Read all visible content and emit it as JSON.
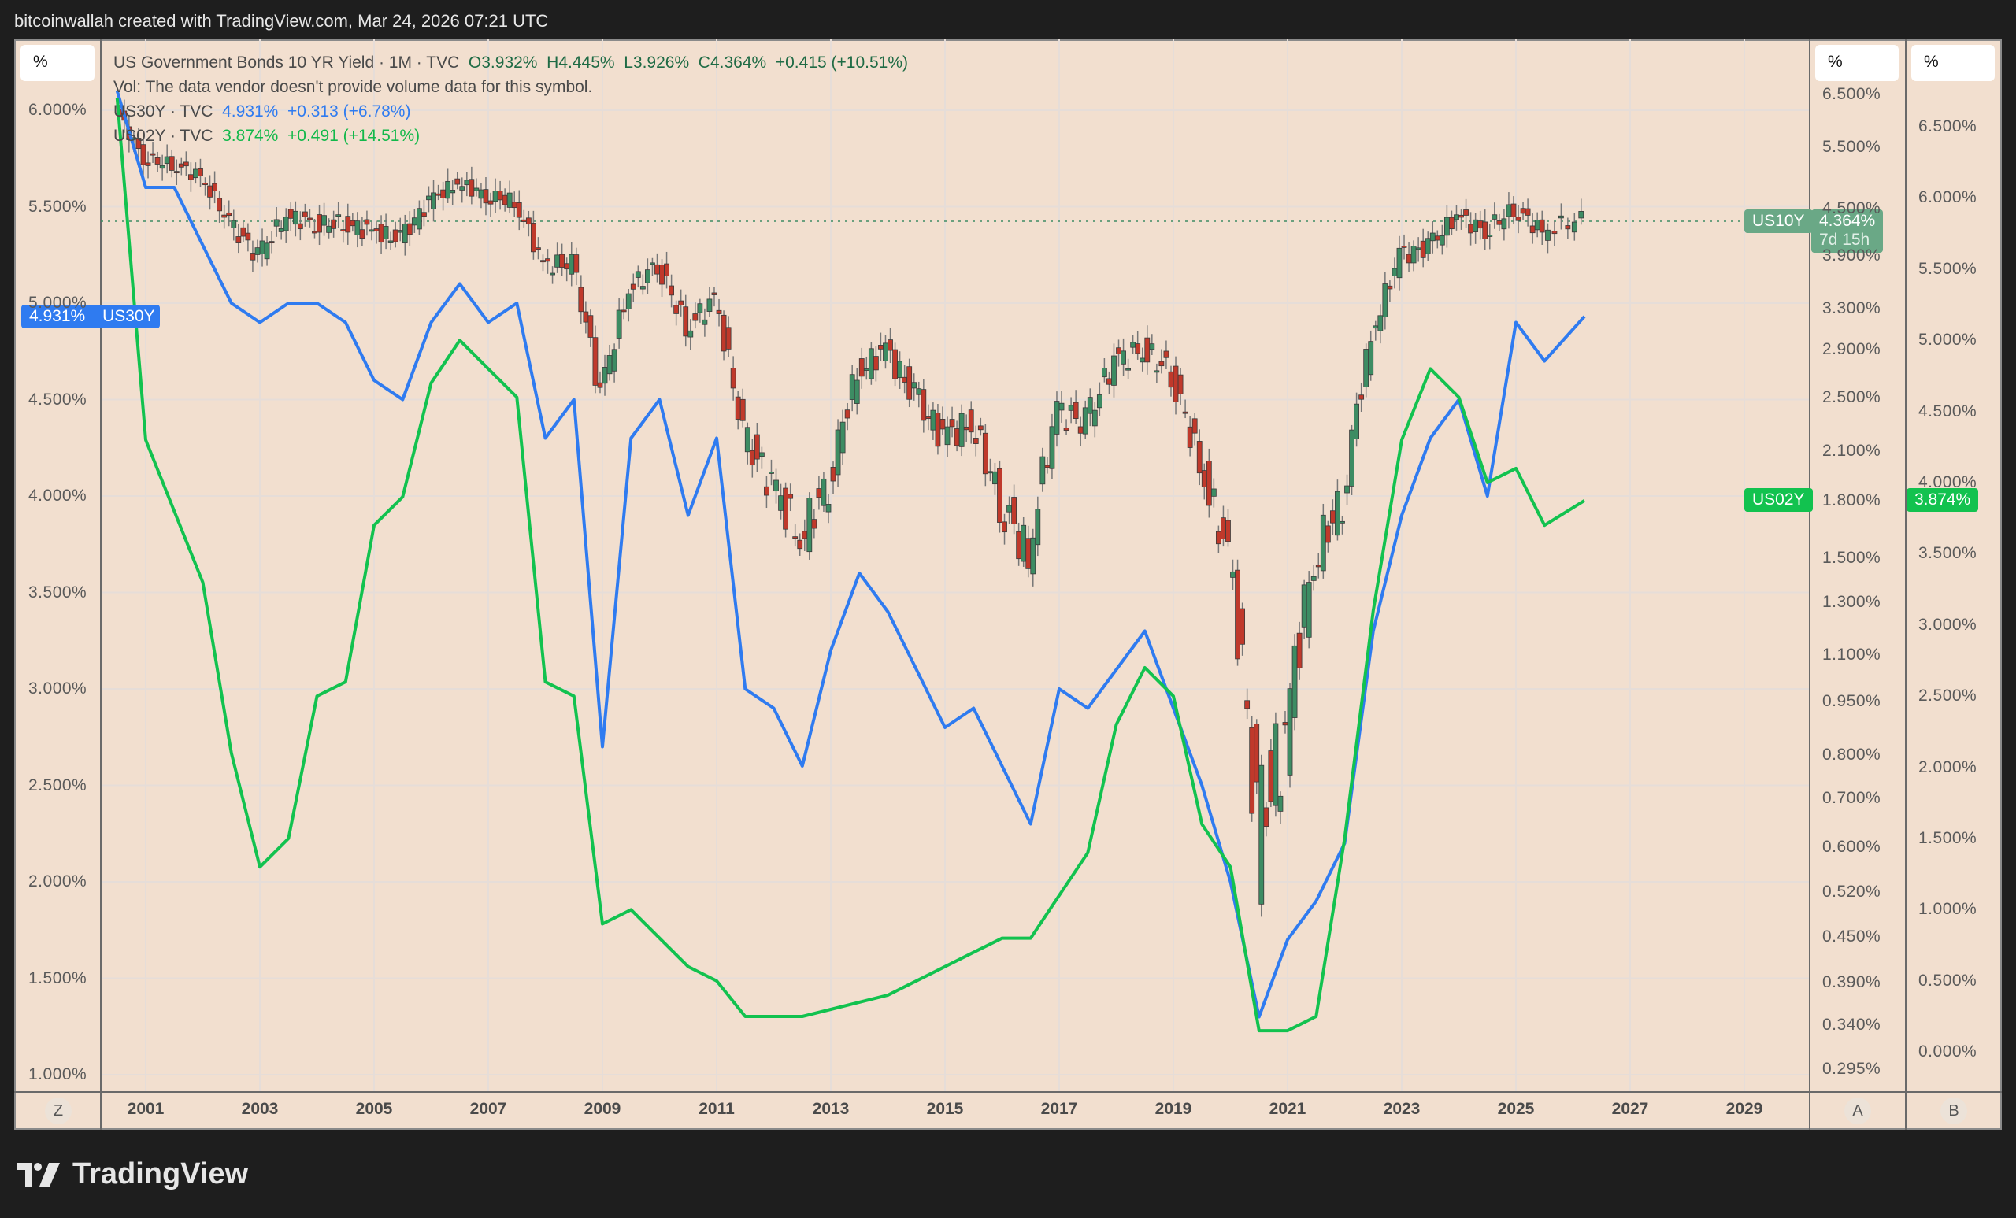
{
  "header": {
    "attribution": "bitcoinwallah created with TradingView.com, Mar 24, 2026 07:21 UTC"
  },
  "legend": {
    "main_title": "US Government Bonds 10 YR Yield · 1M · TVC",
    "ohlc": {
      "open": "O3.932%",
      "high": "H4.445%",
      "low": "L3.926%",
      "close": "C4.364%",
      "change": "+0.415 (+10.51%)"
    },
    "vol_note": "Vol: The data vendor doesn't provide volume data for this symbol.",
    "us30y": {
      "label": "US30Y · TVC",
      "value": "4.931%",
      "change": "+0.313 (+6.78%)"
    },
    "us02y": {
      "label": "US02Y · TVC",
      "value": "3.874%",
      "change": "+0.491 (+14.51%)"
    }
  },
  "axes": {
    "unit_button": "%",
    "left_ticks": [
      "6.000%",
      "5.500%",
      "5.000%",
      "4.500%",
      "4.000%",
      "3.500%",
      "3.000%",
      "2.500%",
      "2.000%",
      "1.500%",
      "1.000%"
    ],
    "a_ticks": [
      "6.500%",
      "5.500%",
      "4.500%",
      "3.900%",
      "3.300%",
      "2.900%",
      "2.500%",
      "2.100%",
      "1.800%",
      "1.500%",
      "1.300%",
      "1.100%",
      "0.950%",
      "0.800%",
      "0.700%",
      "0.600%",
      "0.520%",
      "0.450%",
      "0.390%",
      "0.340%",
      "0.295%"
    ],
    "b_ticks": [
      "6.500%",
      "6.000%",
      "5.500%",
      "5.000%",
      "4.500%",
      "4.000%",
      "3.500%",
      "3.000%",
      "2.500%",
      "2.000%",
      "1.500%",
      "1.000%",
      "0.500%",
      "0.000%"
    ],
    "x_ticks": [
      "2001",
      "2003",
      "2005",
      "2007",
      "2009",
      "2011",
      "2013",
      "2015",
      "2017",
      "2019",
      "2021",
      "2023",
      "2025",
      "2027",
      "2029"
    ],
    "z_button": "Z",
    "a_button": "A",
    "b_button": "B"
  },
  "tags": {
    "us30y_value": "4.931%",
    "us30y_name": "US30Y",
    "us10y_name": "US10Y",
    "us10y_value": "4.364%",
    "us10y_countdown": "7d 15h",
    "us02y_name": "US02Y",
    "us02y_value": "3.874%"
  },
  "colors": {
    "us10y_up": "#3d8c63",
    "us10y_down": "#c0392b",
    "us30y": "#2f7bf0",
    "us02y": "#12c24f",
    "background": "#f2dfcf"
  },
  "footer": {
    "brand": "TradingView"
  },
  "chart_data": {
    "type": "line",
    "title": "US Government Bonds 10 YR Yield · 1M · TVC (with US30Y and US02Y overlays)",
    "xlabel": "",
    "ylabel": "%",
    "x": [
      2000.5,
      2001,
      2001.5,
      2002,
      2002.5,
      2003,
      2003.5,
      2004,
      2004.5,
      2005,
      2005.5,
      2006,
      2006.5,
      2007,
      2007.5,
      2008,
      2008.5,
      2009,
      2009.5,
      2010,
      2010.5,
      2011,
      2011.5,
      2012,
      2012.5,
      2013,
      2013.5,
      2014,
      2014.5,
      2015,
      2015.5,
      2016,
      2016.5,
      2017,
      2017.5,
      2018,
      2018.5,
      2019,
      2019.5,
      2020,
      2020.5,
      2021,
      2021.5,
      2022,
      2022.5,
      2023,
      2023.5,
      2024,
      2024.5,
      2025,
      2025.5,
      2026.2
    ],
    "series": [
      {
        "name": "US10Y",
        "type": "candlestick",
        "axis": "A (log)",
        "values": [
          6.2,
          5.3,
          5.2,
          5.0,
          4.3,
          3.9,
          4.4,
          4.3,
          4.3,
          4.2,
          4.1,
          4.6,
          4.9,
          4.7,
          4.6,
          3.8,
          3.8,
          2.5,
          3.5,
          3.8,
          3.1,
          3.4,
          2.2,
          1.9,
          1.6,
          1.9,
          2.7,
          2.9,
          2.5,
          2.2,
          2.3,
          1.8,
          1.5,
          2.4,
          2.3,
          2.8,
          2.9,
          2.7,
          2.0,
          1.5,
          0.62,
          0.85,
          1.5,
          1.8,
          3.0,
          3.9,
          4.0,
          4.4,
          4.2,
          4.5,
          4.2,
          4.364
        ]
      },
      {
        "name": "US30Y",
        "type": "line",
        "axis": "left",
        "values": [
          6.1,
          5.6,
          5.6,
          5.3,
          5.0,
          4.9,
          5.0,
          5.0,
          4.9,
          4.6,
          4.5,
          4.9,
          5.1,
          4.9,
          5.0,
          4.3,
          4.5,
          2.7,
          4.3,
          4.5,
          3.9,
          4.3,
          3.0,
          2.9,
          2.6,
          3.2,
          3.6,
          3.4,
          3.1,
          2.8,
          2.9,
          2.6,
          2.3,
          3.0,
          2.9,
          3.1,
          3.3,
          2.9,
          2.5,
          2.0,
          1.3,
          1.7,
          1.9,
          2.2,
          3.3,
          3.9,
          4.3,
          4.5,
          4.0,
          4.9,
          4.7,
          4.931
        ]
      },
      {
        "name": "US02Y",
        "type": "line",
        "axis": "B",
        "values": [
          6.7,
          4.3,
          3.8,
          3.3,
          2.1,
          1.3,
          1.5,
          2.5,
          2.6,
          3.7,
          3.9,
          4.7,
          5.0,
          4.8,
          4.6,
          2.6,
          2.5,
          0.9,
          1.0,
          0.8,
          0.6,
          0.5,
          0.25,
          0.25,
          0.25,
          0.3,
          0.35,
          0.4,
          0.5,
          0.6,
          0.7,
          0.8,
          0.8,
          1.1,
          1.4,
          2.3,
          2.7,
          2.5,
          1.6,
          1.3,
          0.15,
          0.15,
          0.25,
          1.5,
          3.1,
          4.3,
          4.8,
          4.6,
          4.0,
          4.1,
          3.7,
          3.874
        ]
      }
    ],
    "legend_position": "top-left",
    "grid": true
  }
}
